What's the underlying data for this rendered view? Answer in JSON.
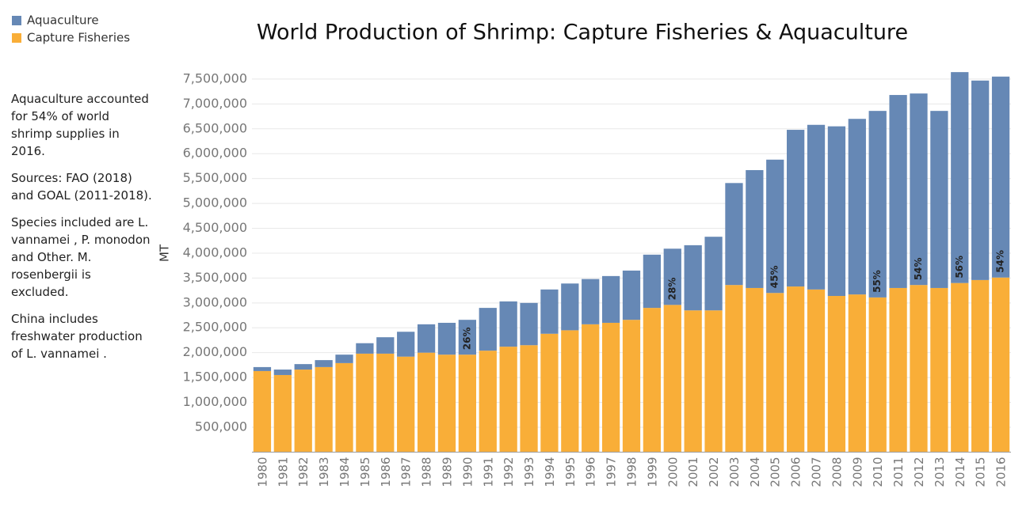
{
  "chart_data": {
    "type": "stacked_bar",
    "title": "World Production of Shrimp: Capture Fisheries & Aquaculture",
    "y_label": "MT",
    "notes": [
      "Aquaculture accounted for 54% of world shrimp supplies in 2016.",
      "Sources:  FAO (2018) and GOAL (2011-2018).",
      "Species included are L. vannamei , P. monodon and Other. M. rosenbergii is excluded.",
      "China includes freshwater production of L. vannamei ."
    ],
    "categories": [
      "1980",
      "1981",
      "1982",
      "1983",
      "1984",
      "1985",
      "1986",
      "1987",
      "1988",
      "1989",
      "1990",
      "1991",
      "1992",
      "1993",
      "1994",
      "1995",
      "1996",
      "1997",
      "1998",
      "1999",
      "2000",
      "2001",
      "2002",
      "2003",
      "2004",
      "2005",
      "2006",
      "2007",
      "2008",
      "2009",
      "2010",
      "2011",
      "2012",
      "2013",
      "2014",
      "2015",
      "2016"
    ],
    "series": [
      {
        "name": "Aquaculture",
        "color": "#6688b5",
        "values": [
          80000,
          110000,
          110000,
          140000,
          170000,
          210000,
          330000,
          500000,
          570000,
          640000,
          700000,
          860000,
          910000,
          850000,
          890000,
          940000,
          910000,
          940000,
          990000,
          1070000,
          1130000,
          1310000,
          1480000,
          2050000,
          2370000,
          2680000,
          3150000,
          3310000,
          3410000,
          3530000,
          3750000,
          3880000,
          3850000,
          3560000,
          4240000,
          4010000,
          4040000
        ]
      },
      {
        "name": "Capture Fisheries",
        "color": "#f9ae38",
        "values": [
          1630000,
          1550000,
          1660000,
          1710000,
          1790000,
          1980000,
          1980000,
          1920000,
          2000000,
          1960000,
          1960000,
          2040000,
          2120000,
          2150000,
          2380000,
          2450000,
          2570000,
          2600000,
          2660000,
          2900000,
          2960000,
          2850000,
          2850000,
          3360000,
          3300000,
          3200000,
          3330000,
          3270000,
          3140000,
          3170000,
          3110000,
          3300000,
          3360000,
          3300000,
          3400000,
          3460000,
          3510000
        ]
      }
    ],
    "annotations": [
      {
        "x": "1990",
        "text": "26%"
      },
      {
        "x": "2000",
        "text": "28%"
      },
      {
        "x": "2005",
        "text": "45%"
      },
      {
        "x": "2010",
        "text": "55%"
      },
      {
        "x": "2012",
        "text": "54%"
      },
      {
        "x": "2014",
        "text": "56%"
      },
      {
        "x": "2016",
        "text": "54%"
      }
    ],
    "ylim": [
      0,
      8000000
    ],
    "yticks": [
      {
        "value": 500000,
        "label": "500,000"
      },
      {
        "value": 1000000,
        "label": "1,000,000"
      },
      {
        "value": 1500000,
        "label": "1,500,000"
      },
      {
        "value": 2000000,
        "label": "2,000,000"
      },
      {
        "value": 2500000,
        "label": "2,500,000"
      },
      {
        "value": 3000000,
        "label": "3,000,000"
      },
      {
        "value": 3500000,
        "label": "3,500,000"
      },
      {
        "value": 4000000,
        "label": "4,000,000"
      },
      {
        "value": 4500000,
        "label": "4,500,000"
      },
      {
        "value": 5000000,
        "label": "5,000,000"
      },
      {
        "value": 5500000,
        "label": "5,500,000"
      },
      {
        "value": 6000000,
        "label": "6,000,000"
      },
      {
        "value": 6500000,
        "label": "6,500,000"
      },
      {
        "value": 7000000,
        "label": "7,000,000"
      },
      {
        "value": 7500000,
        "label": "7,500,000"
      }
    ],
    "grid": true,
    "legend": "top-left"
  }
}
